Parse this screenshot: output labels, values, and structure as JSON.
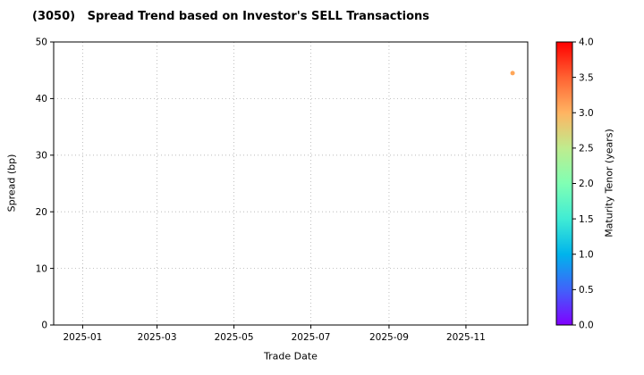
{
  "figure": {
    "background": "#ffffff"
  },
  "chart_data": {
    "type": "scatter",
    "title": "(3050)   Spread Trend based on Investor's SELL Transactions",
    "xlabel": "Trade Date",
    "ylabel": "Spread (bp)",
    "x_range": [
      "2024-12-09",
      "2025-12-20"
    ],
    "x_ticks": [
      {
        "date": "2025-01-01",
        "label": "2025-01"
      },
      {
        "date": "2025-03-01",
        "label": "2025-03"
      },
      {
        "date": "2025-05-01",
        "label": "2025-05"
      },
      {
        "date": "2025-07-01",
        "label": "2025-07"
      },
      {
        "date": "2025-09-01",
        "label": "2025-09"
      },
      {
        "date": "2025-11-01",
        "label": "2025-11"
      }
    ],
    "ylim": [
      0,
      50
    ],
    "y_ticks": [
      0,
      10,
      20,
      30,
      40,
      50
    ],
    "grid": {
      "visible": true,
      "style": "dotted",
      "color": "#b0b0b0"
    },
    "points": [
      {
        "date": "2025-12-08",
        "spread_bp": 44.5,
        "maturity_tenor_years": 3.1,
        "color": "#ffa658"
      }
    ],
    "colorbar": {
      "label": "Maturity Tenor (years)",
      "min": 0.0,
      "max": 4.0,
      "ticks": [
        0.0,
        0.5,
        1.0,
        1.5,
        2.0,
        2.5,
        3.0,
        3.5,
        4.0
      ],
      "colormap": "rainbow",
      "gradient_stops": [
        {
          "pos": 0.0,
          "color": "#8000ff"
        },
        {
          "pos": 0.125,
          "color": "#4062fa"
        },
        {
          "pos": 0.25,
          "color": "#00b4ec"
        },
        {
          "pos": 0.375,
          "color": "#40ecd4"
        },
        {
          "pos": 0.5,
          "color": "#80ffb4"
        },
        {
          "pos": 0.625,
          "color": "#bfec8e"
        },
        {
          "pos": 0.75,
          "color": "#ffb462"
        },
        {
          "pos": 0.875,
          "color": "#ff6232"
        },
        {
          "pos": 1.0,
          "color": "#ff0000"
        }
      ]
    }
  }
}
